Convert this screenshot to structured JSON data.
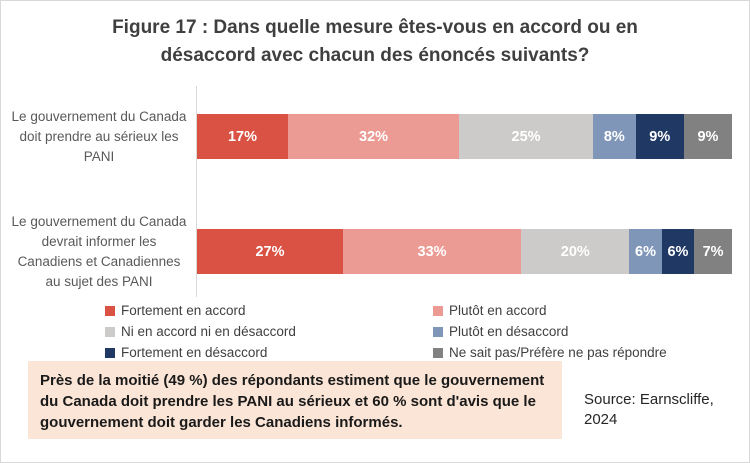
{
  "chart_data": {
    "type": "bar",
    "orientation": "horizontal",
    "stacked": true,
    "normalized_to_100": true,
    "title": "Figure 17 : Dans quelle mesure êtes-vous en accord ou en désaccord avec chacun des énoncés suivants?",
    "xlabel": "",
    "ylabel": "",
    "xlim": [
      0,
      100
    ],
    "unit": "%",
    "grid": false,
    "legend_position": "bottom",
    "data_labels": true,
    "categories": [
      "Le gouvernement du Canada doit prendre au sérieux les PANI",
      "Le gouvernement du Canada devrait informer les Canadiens et Canadiennes au sujet des PANI"
    ],
    "series": [
      {
        "key": "fortement-en-accord",
        "name": "Fortement en accord",
        "color": "#d95243",
        "values": [
          17,
          27
        ]
      },
      {
        "key": "plutot-en-accord",
        "name": "Plutôt en accord",
        "color": "#eb9b93",
        "values": [
          32,
          33
        ]
      },
      {
        "key": "ni-accord-ni-desaccord",
        "name": "Ni en accord ni en désaccord",
        "color": "#cccbca",
        "values": [
          25,
          20
        ]
      },
      {
        "key": "plutot-en-desaccord",
        "name": "Plutôt en désaccord",
        "color": "#8096b9",
        "values": [
          8,
          6
        ]
      },
      {
        "key": "fortement-en-desaccord",
        "name": "Fortement en désaccord",
        "color": "#1f3864",
        "values": [
          9,
          6
        ]
      },
      {
        "key": "ne-sait-pas",
        "name": "Ne sait pas/Préfère ne pas répondre",
        "color": "#818181",
        "values": [
          9,
          7
        ]
      }
    ]
  },
  "annotation": {
    "text": "Près de la moitié (49 %) des répondants estiment que le gouvernement du Canada doit prendre les PANI au sérieux et 60 % sont d'avis que le gouvernement doit garder les Canadiens informés.",
    "bg_color": "#fbe5d6"
  },
  "source": {
    "text": "Source: Earnscliffe, 2024"
  },
  "style_colors": {
    "title_text": "#3f3f3f",
    "category_text": "#595959",
    "legend_text": "#404040",
    "axis_line": "#d9d9d9",
    "data_label_text": "#ffffff",
    "frame_border": "#d8d8d8"
  }
}
